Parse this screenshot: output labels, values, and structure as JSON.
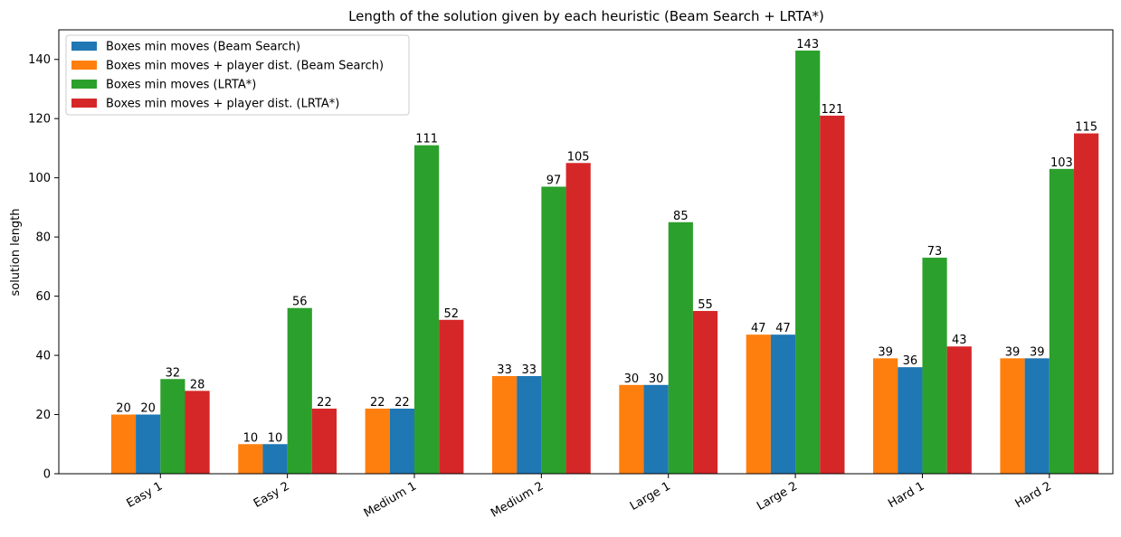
{
  "chart_data": {
    "type": "bar",
    "title": "Length of the solution given by each heuristic (Beam Search + LRTA*)",
    "xlabel": "",
    "ylabel": "solution length",
    "ylim": [
      0,
      150
    ],
    "yticks": [
      0,
      20,
      40,
      60,
      80,
      100,
      120,
      140
    ],
    "grid": false,
    "legend_position": "top-left",
    "categories": [
      "Easy 1",
      "Easy 2",
      "Medium 1",
      "Medium 2",
      "Large 1",
      "Large 2",
      "Hard 1",
      "Hard 2"
    ],
    "bar_order": [
      1,
      0,
      2,
      3
    ],
    "series": [
      {
        "name": "Boxes min moves (Beam Search)",
        "color": "#1f77b4",
        "values": [
          20,
          10,
          22,
          33,
          30,
          47,
          36,
          39
        ]
      },
      {
        "name": "Boxes min moves + player dist. (Beam Search)",
        "color": "#ff7f0e",
        "values": [
          20,
          10,
          22,
          33,
          30,
          47,
          39,
          39
        ]
      },
      {
        "name": "Boxes min moves (LRTA*)",
        "color": "#2ca02c",
        "values": [
          32,
          56,
          111,
          97,
          85,
          143,
          73,
          103
        ]
      },
      {
        "name": "Boxes min moves + player dist. (LRTA*)",
        "color": "#d62728",
        "values": [
          28,
          22,
          52,
          105,
          55,
          121,
          43,
          115
        ]
      }
    ]
  }
}
